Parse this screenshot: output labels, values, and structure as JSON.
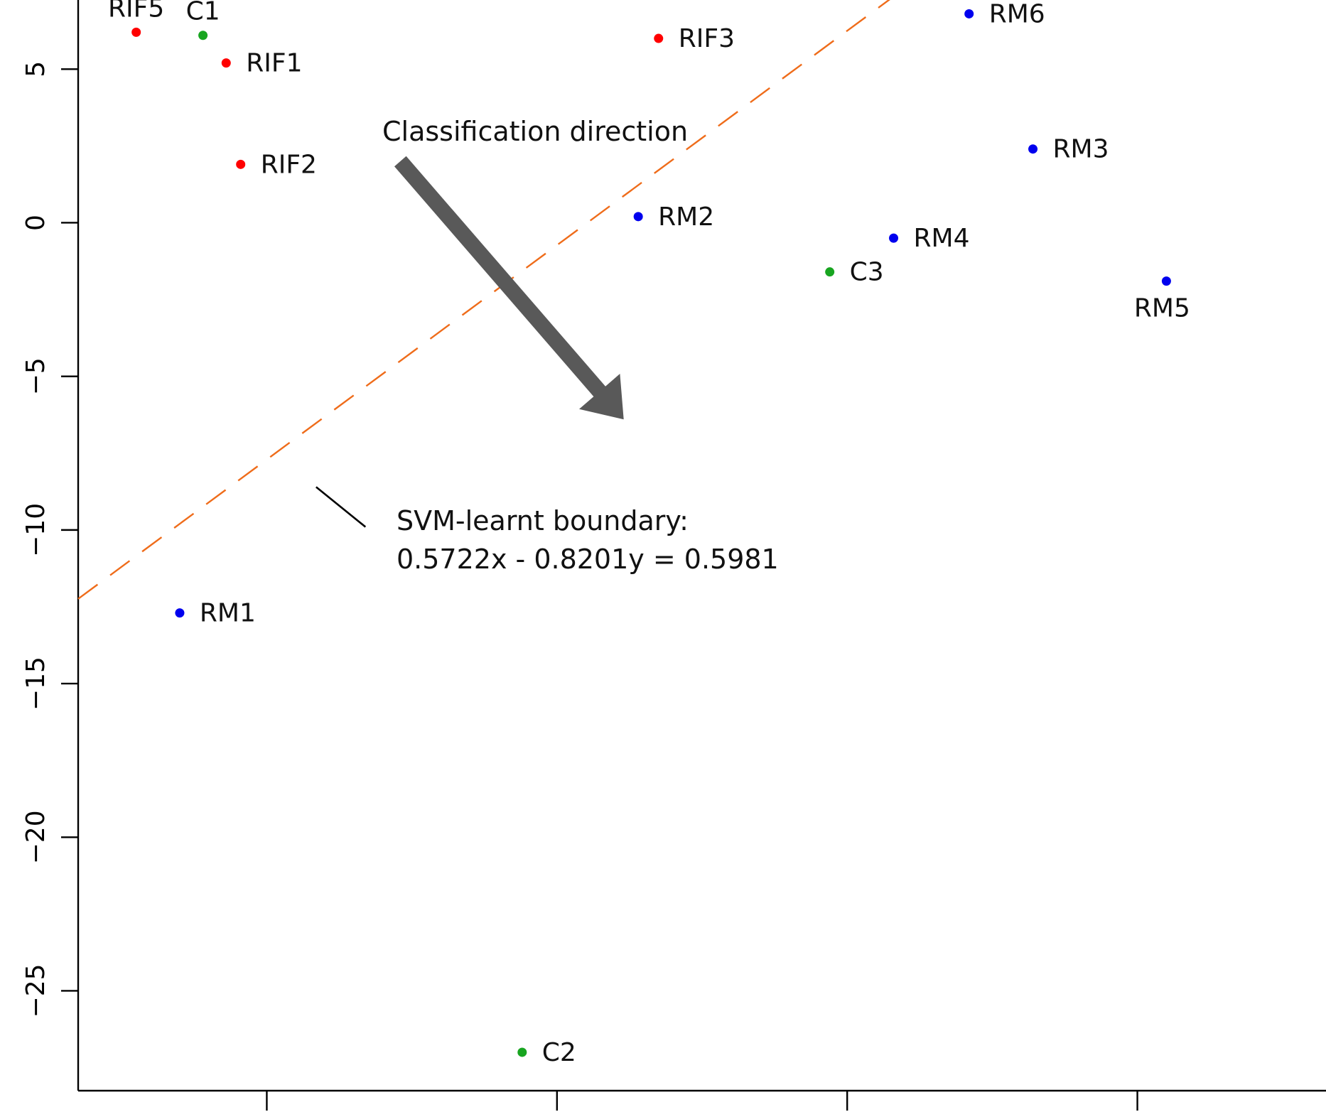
{
  "chart_data": {
    "type": "scatter",
    "title": "",
    "xlabel": "",
    "ylabel": "",
    "xlim": [
      -16.5,
      26.5
    ],
    "ylim": [
      -28.25,
      7.25
    ],
    "x_ticks": [
      -10,
      0,
      10,
      20
    ],
    "x_tick_labels": [
      "",
      "",
      "",
      ""
    ],
    "y_ticks": [
      5,
      0,
      -5,
      -10,
      -15,
      -20,
      -25
    ],
    "y_tick_labels": [
      "5",
      "0",
      "−5",
      "−10",
      "−15",
      "−20",
      "−25"
    ],
    "grid": false,
    "colors": {
      "red": "#ff0000",
      "green": "#18a520",
      "blue": "#0000ee",
      "boundary": "#ef6c1a",
      "arrow": "#595959"
    },
    "points": [
      {
        "label": "RIF5",
        "x": -14.5,
        "y": 6.2,
        "color": "red"
      },
      {
        "label": "C1",
        "x": -12.2,
        "y": 6.1,
        "color": "green"
      },
      {
        "label": "RIF1",
        "x": -11.4,
        "y": 5.2,
        "color": "red"
      },
      {
        "label": "RIF2",
        "x": -10.9,
        "y": 1.9,
        "color": "red"
      },
      {
        "label": "RIF3",
        "x": 3.5,
        "y": 6.0,
        "color": "red"
      },
      {
        "label": "RM2",
        "x": 2.8,
        "y": 0.2,
        "color": "blue"
      },
      {
        "label": "RM6",
        "x": 14.2,
        "y": 6.8,
        "color": "blue"
      },
      {
        "label": "RM3",
        "x": 16.4,
        "y": 2.4,
        "color": "blue"
      },
      {
        "label": "RM4",
        "x": 11.6,
        "y": -0.5,
        "color": "blue"
      },
      {
        "label": "C3",
        "x": 9.4,
        "y": -1.6,
        "color": "green"
      },
      {
        "label": "RM5",
        "x": 21.0,
        "y": -1.9,
        "color": "blue"
      },
      {
        "label": "RM1",
        "x": -13.0,
        "y": -12.7,
        "color": "blue"
      },
      {
        "label": "C2",
        "x": -1.2,
        "y": -27.0,
        "color": "green"
      }
    ],
    "boundary": {
      "label_line1": "SVM-learnt boundary:",
      "label_line2": "0.5722x - 0.8201y = 0.5981",
      "coef_x": 0.5722,
      "coef_y": -0.8201,
      "intercept": 0.5981,
      "x_range": [
        -16.5,
        26.5
      ]
    },
    "direction_label": "Classification direction",
    "direction_arrow": {
      "from": [
        -5.4,
        2.0
      ],
      "to": [
        2.3,
        -6.4
      ]
    },
    "boundary_pointer": {
      "from": [
        -8.3,
        -8.6
      ],
      "to": [
        -6.6,
        -9.9
      ]
    }
  }
}
